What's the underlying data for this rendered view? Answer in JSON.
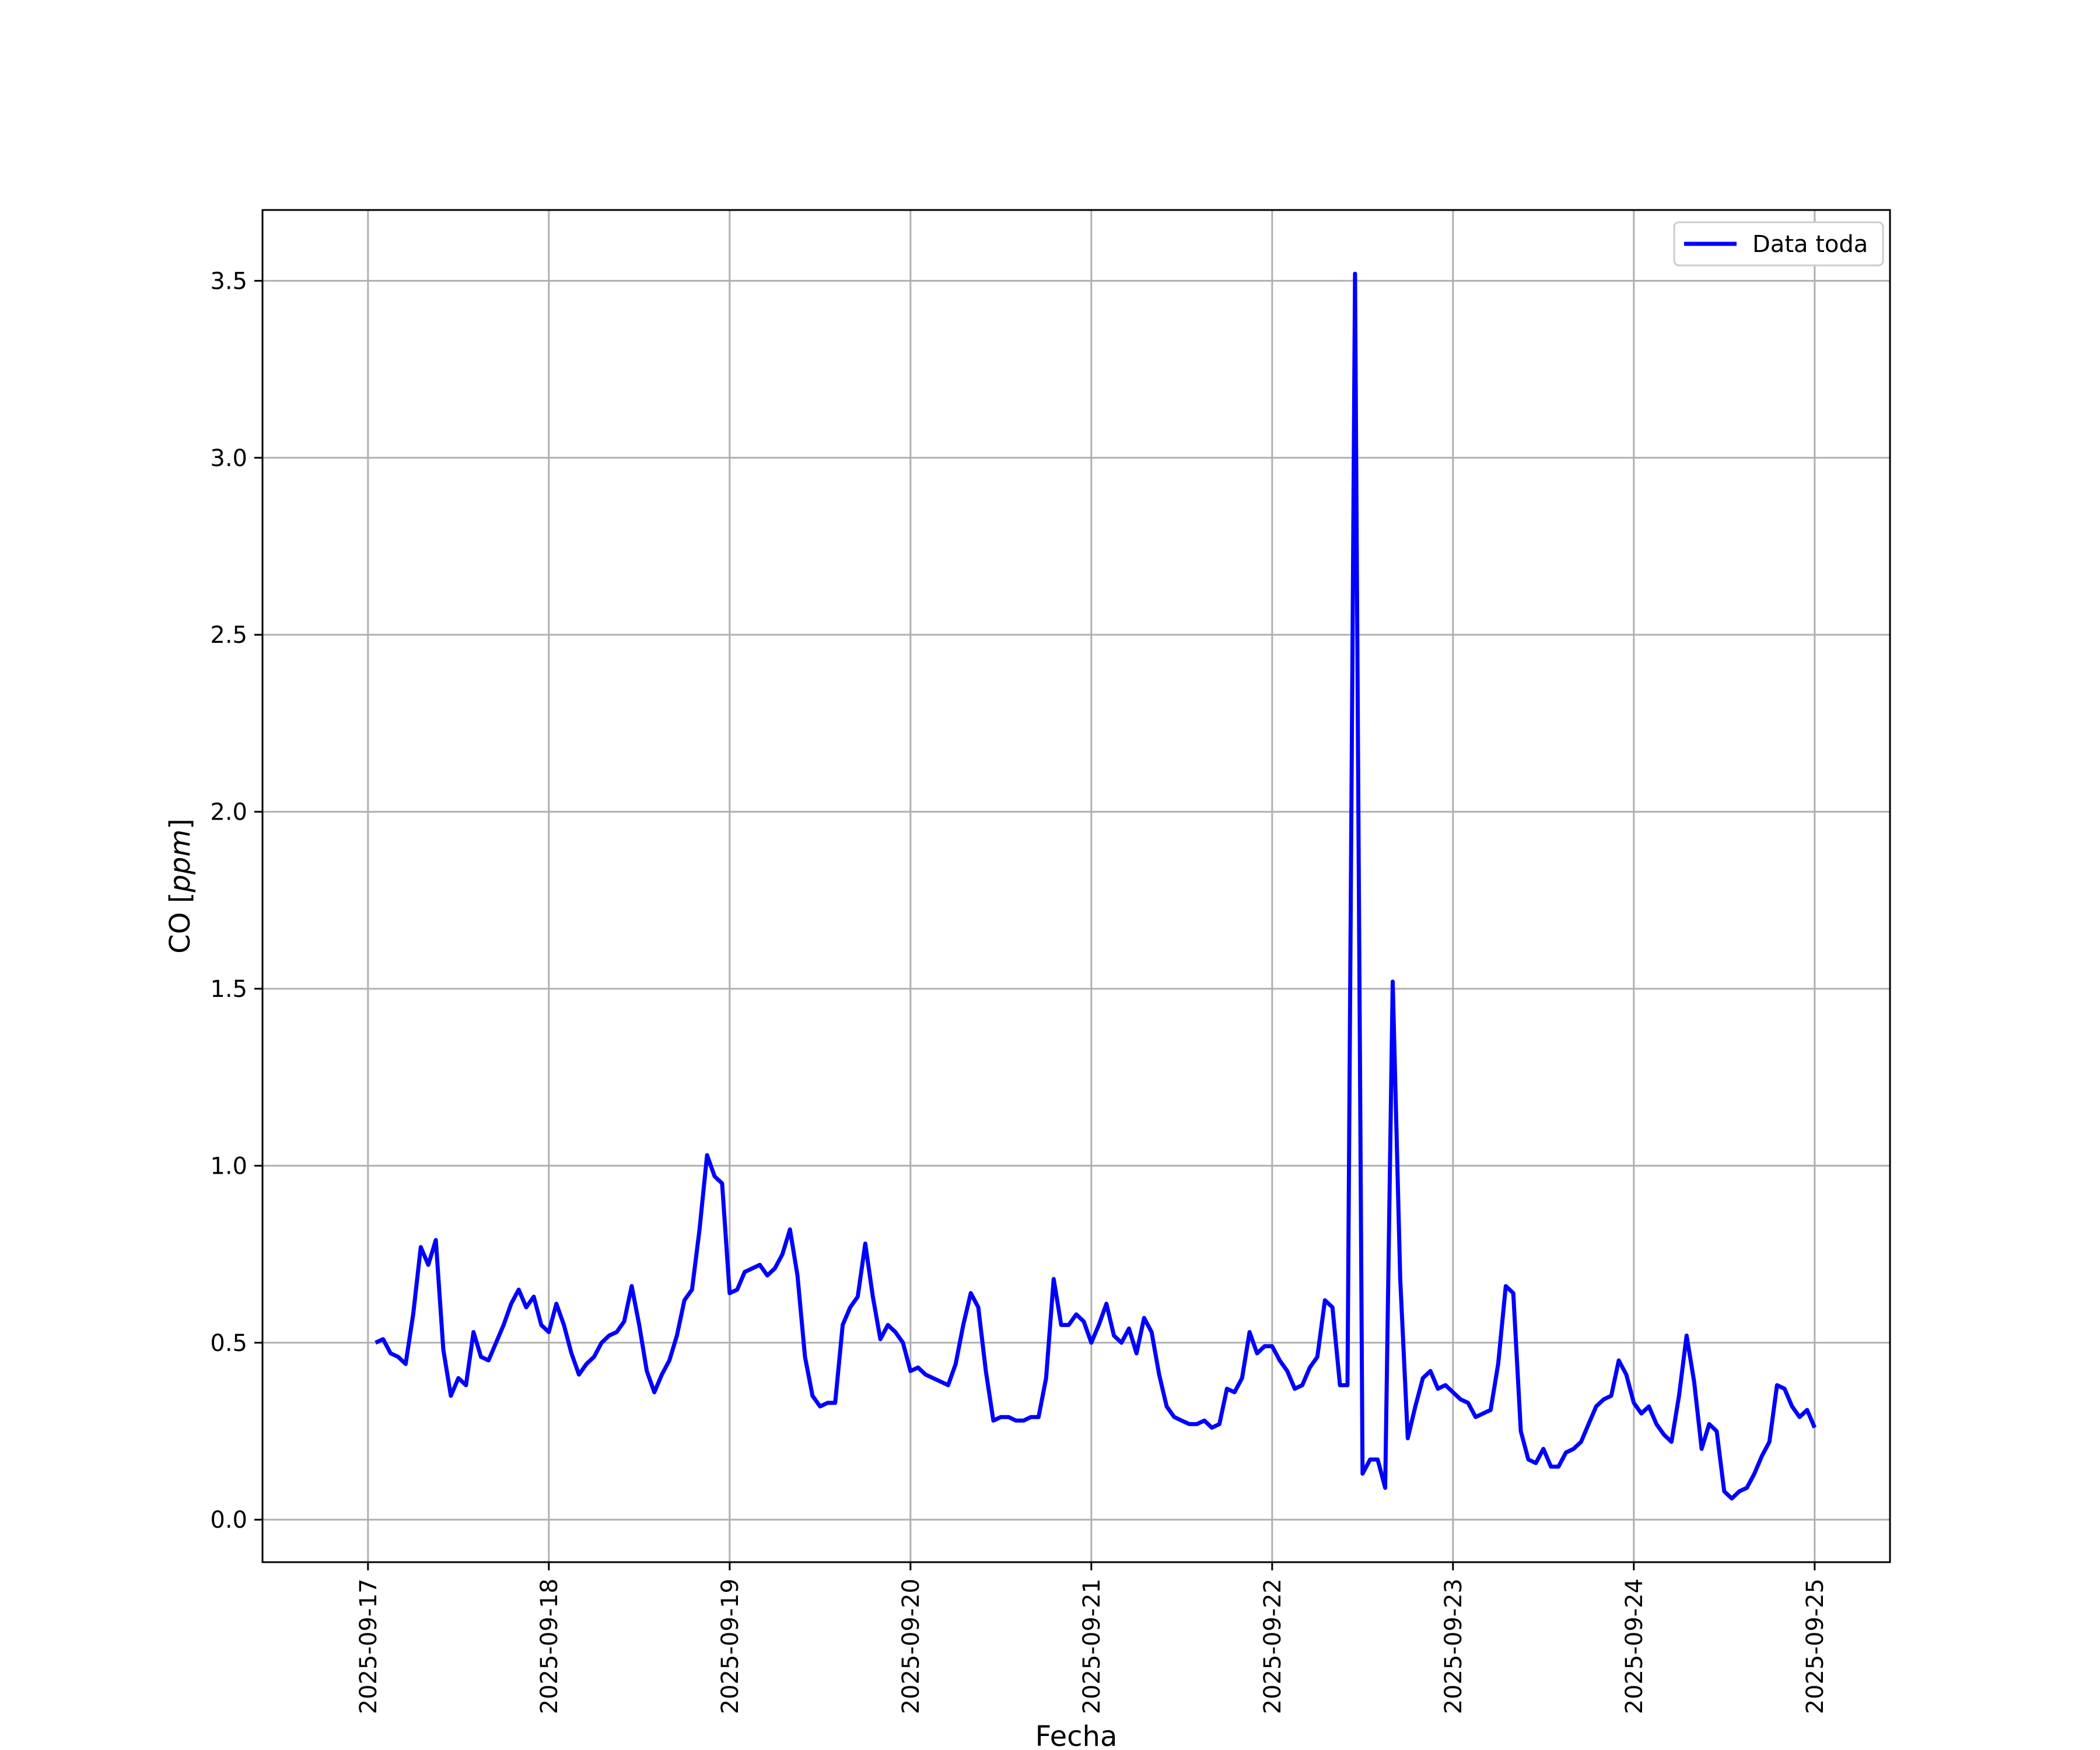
{
  "chart_data": {
    "type": "line",
    "title": "",
    "xlabel": "Fecha",
    "ylabel_main": "CO [",
    "ylabel_unit": "ppm",
    "ylabel_close": "]",
    "x_ticks": [
      "2025-09-17",
      "2025-09-18",
      "2025-09-19",
      "2025-09-20",
      "2025-09-21",
      "2025-09-22",
      "2025-09-23",
      "2025-09-24",
      "2025-09-25"
    ],
    "y_ticks": [
      "0.0",
      "0.5",
      "1.0",
      "1.5",
      "2.0",
      "2.5",
      "3.0",
      "3.5"
    ],
    "y_tick_values": [
      0,
      0.5,
      1.0,
      1.5,
      2.0,
      2.5,
      3.0,
      3.5
    ],
    "xlim": [
      "2025-09-16 10:00",
      "2025-09-25 10:00"
    ],
    "ylim": [
      -0.12,
      3.7
    ],
    "grid": true,
    "legend_position": "top-right",
    "series": [
      {
        "name": "Data toda",
        "color": "#0000ff",
        "x_start": "2025-09-17 01:00",
        "x_step_hours": 1,
        "values": [
          0.5,
          0.51,
          0.47,
          0.46,
          0.44,
          0.58,
          0.77,
          0.72,
          0.79,
          0.48,
          0.35,
          0.4,
          0.38,
          0.53,
          0.46,
          0.45,
          0.5,
          0.55,
          0.61,
          0.65,
          0.6,
          0.63,
          0.55,
          0.53,
          0.61,
          0.55,
          0.47,
          0.41,
          0.44,
          0.46,
          0.5,
          0.52,
          0.53,
          0.56,
          0.66,
          0.55,
          0.42,
          0.36,
          0.41,
          0.45,
          0.52,
          0.62,
          0.65,
          0.82,
          1.03,
          0.97,
          0.95,
          0.64,
          0.65,
          0.7,
          0.71,
          0.72,
          0.69,
          0.71,
          0.75,
          0.82,
          0.69,
          0.46,
          0.35,
          0.32,
          0.33,
          0.33,
          0.55,
          0.6,
          0.63,
          0.78,
          0.63,
          0.51,
          0.55,
          0.53,
          0.5,
          0.42,
          0.43,
          0.41,
          0.4,
          0.39,
          0.38,
          0.44,
          0.55,
          0.64,
          0.6,
          0.42,
          0.28,
          0.29,
          0.29,
          0.28,
          0.28,
          0.29,
          0.29,
          0.4,
          0.68,
          0.55,
          0.55,
          0.58,
          0.56,
          0.5,
          0.55,
          0.61,
          0.52,
          0.5,
          0.54,
          0.47,
          0.57,
          0.53,
          0.41,
          0.32,
          0.29,
          0.28,
          0.27,
          0.27,
          0.28,
          0.26,
          0.27,
          0.37,
          0.36,
          0.4,
          0.53,
          0.47,
          0.49,
          0.49,
          0.45,
          0.42,
          0.37,
          0.38,
          0.43,
          0.46,
          0.62,
          0.6,
          0.38,
          0.38,
          3.52,
          0.13,
          0.17,
          0.17,
          0.09,
          1.52,
          0.68,
          0.23,
          0.32,
          0.4,
          0.42,
          0.37,
          0.38,
          0.36,
          0.34,
          0.33,
          0.29,
          0.3,
          0.31,
          0.44,
          0.66,
          0.64,
          0.25,
          0.17,
          0.16,
          0.2,
          0.15,
          0.15,
          0.19,
          0.2,
          0.22,
          0.27,
          0.32,
          0.34,
          0.35,
          0.45,
          0.41,
          0.33,
          0.3,
          0.32,
          0.27,
          0.24,
          0.22,
          0.35,
          0.52,
          0.39,
          0.2,
          0.27,
          0.25,
          0.08,
          0.06,
          0.08,
          0.09,
          0.13,
          0.18,
          0.22,
          0.38,
          0.37,
          0.32,
          0.29,
          0.31,
          0.26
        ]
      }
    ]
  }
}
